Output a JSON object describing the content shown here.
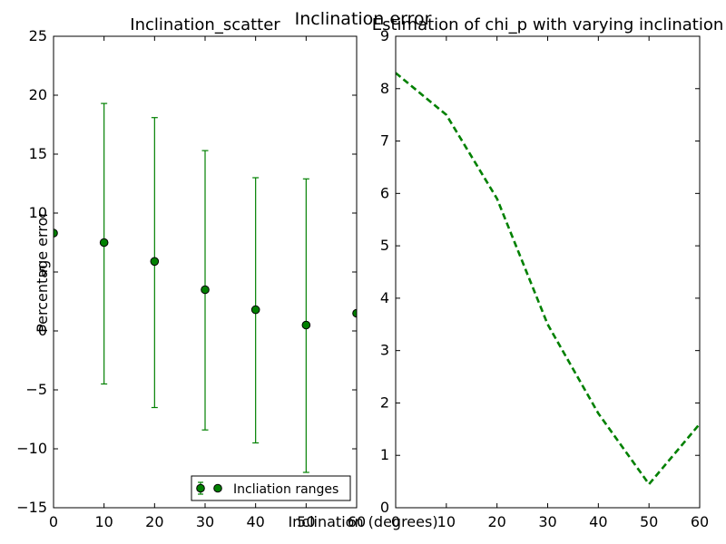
{
  "figure": {
    "suptitle": "Inclination error",
    "xlabel": "Inclination (degrees)",
    "ylabel": "Percentage error"
  },
  "chart_data": [
    {
      "type": "scatter",
      "title": "Inclination_scatter",
      "xlim": [
        0,
        60
      ],
      "ylim": [
        -15,
        25
      ],
      "xticks": [
        0,
        10,
        20,
        30,
        40,
        50,
        60
      ],
      "yticks": [
        -15,
        -10,
        -5,
        0,
        5,
        10,
        15,
        20,
        25
      ],
      "grid": false,
      "legend": {
        "placement": "lower-right",
        "entries": [
          "Incliation ranges"
        ]
      },
      "color": "#008000",
      "series": [
        {
          "name": "Incliation ranges",
          "x": [
            0,
            10,
            20,
            30,
            40,
            50,
            60
          ],
          "y": [
            8.3,
            7.5,
            5.9,
            3.5,
            1.8,
            0.5,
            1.5
          ],
          "yerr_lower": [
            null,
            -4.5,
            -6.5,
            -8.4,
            -9.5,
            -12.0,
            null
          ],
          "yerr_upper": [
            null,
            19.3,
            18.1,
            15.3,
            13.0,
            12.9,
            null
          ]
        }
      ]
    },
    {
      "type": "line",
      "title": "Estimation of chi_p with varying inclination",
      "xlim": [
        0,
        60
      ],
      "ylim": [
        0,
        9
      ],
      "xticks": [
        0,
        10,
        20,
        30,
        40,
        50,
        60
      ],
      "yticks": [
        0,
        1,
        2,
        3,
        4,
        5,
        6,
        7,
        8,
        9
      ],
      "grid": false,
      "line_style": "dashed",
      "color": "#008000",
      "series": [
        {
          "x": [
            0,
            10,
            20,
            30,
            40,
            50,
            60
          ],
          "y": [
            8.3,
            7.5,
            5.9,
            3.5,
            1.8,
            0.45,
            1.6
          ]
        }
      ]
    }
  ]
}
